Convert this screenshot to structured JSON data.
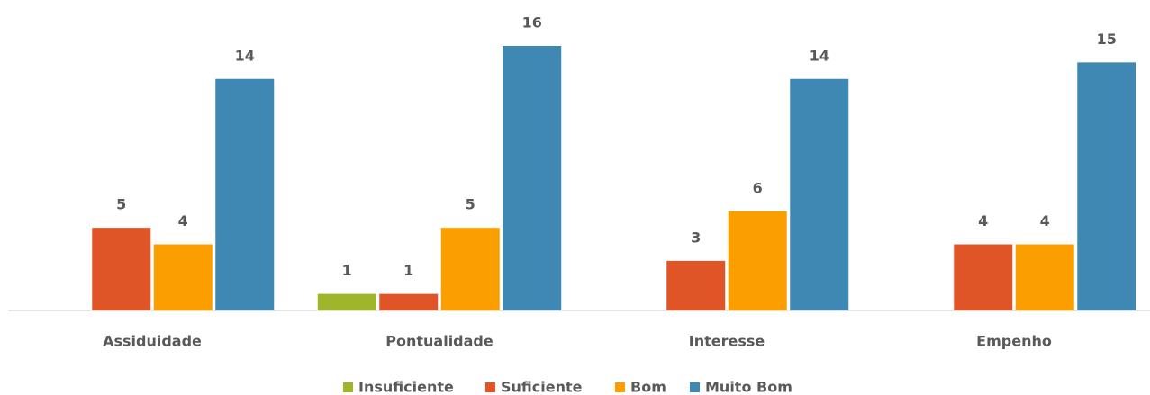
{
  "chart_data": {
    "type": "bar",
    "categories": [
      "Assiduidade",
      "Pontualidade",
      "Interesse",
      "Empenho"
    ],
    "series": [
      {
        "name": "Insuficiente",
        "color": "#9fb52a",
        "values": [
          null,
          1,
          null,
          null
        ]
      },
      {
        "name": "Suficiente",
        "color": "#e05527",
        "values": [
          5,
          1,
          3,
          4
        ]
      },
      {
        "name": "Bom",
        "color": "#fb9e00",
        "values": [
          4,
          5,
          6,
          4
        ]
      },
      {
        "name": "Muito Bom",
        "color": "#3f88b4",
        "values": [
          14,
          16,
          14,
          15
        ]
      }
    ],
    "ylim": [
      0,
      16
    ],
    "legend": "bottom"
  }
}
